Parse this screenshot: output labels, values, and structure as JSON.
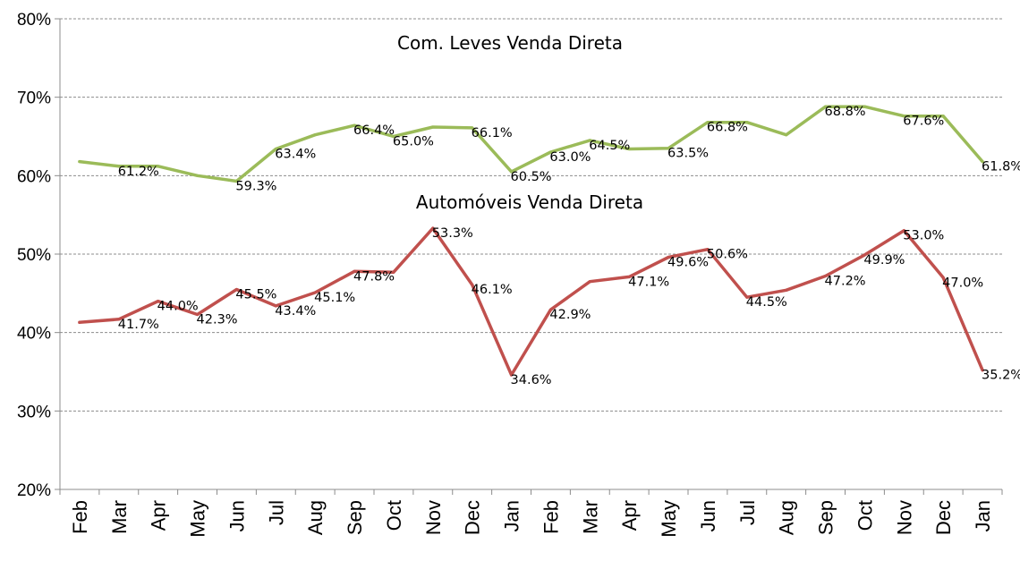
{
  "chart_data": {
    "type": "line",
    "title": "",
    "xlabel": "",
    "ylabel": "",
    "categories": [
      "Feb",
      "Mar",
      "Apr",
      "May",
      "Jun",
      "Jul",
      "Aug",
      "Sep",
      "Oct",
      "Nov",
      "Dec",
      "Jan",
      "Feb",
      "Mar",
      "Apr",
      "May",
      "Jun",
      "Jul",
      "Aug",
      "Sep",
      "Oct",
      "Nov",
      "Dec",
      "Jan"
    ],
    "ylim": [
      20,
      80
    ],
    "yticks": [
      20,
      30,
      40,
      50,
      60,
      70,
      80
    ],
    "ytick_labels": [
      "20%",
      "30%",
      "40%",
      "50%",
      "60%",
      "70%",
      "80%"
    ],
    "grid": true,
    "legend": "none",
    "series": [
      {
        "name": "Com. Leves Venda Direta",
        "color": "#9bbb59",
        "values": [
          61.8,
          61.2,
          61.2,
          60.0,
          59.3,
          63.4,
          65.2,
          66.4,
          65.0,
          66.2,
          66.1,
          60.5,
          63.0,
          64.5,
          63.4,
          63.5,
          66.8,
          66.8,
          65.2,
          68.8,
          68.8,
          67.6,
          67.6,
          61.8
        ],
        "labels": [
          "",
          "61.2%",
          "",
          "",
          "59.3%",
          "63.4%",
          "",
          "66.4%",
          "65.0%",
          "",
          "66.1%",
          "60.5%",
          "63.0%",
          "64.5%",
          "",
          "63.5%",
          "66.8%",
          "",
          "",
          "68.8%",
          "",
          "67.6%",
          "",
          "61.8%"
        ]
      },
      {
        "name": "Automóveis Venda Direta",
        "color": "#c0504d",
        "values": [
          41.3,
          41.7,
          44.0,
          42.3,
          45.5,
          43.4,
          45.1,
          47.8,
          47.7,
          53.3,
          46.1,
          34.6,
          42.9,
          46.5,
          47.1,
          49.6,
          50.6,
          44.5,
          45.4,
          47.2,
          49.9,
          53.0,
          47.0,
          35.2
        ],
        "labels": [
          "",
          "41.7%",
          "44.0%",
          "42.3%",
          "45.5%",
          "43.4%",
          "45.1%",
          "47.8%",
          "",
          "53.3%",
          "46.1%",
          "34.6%",
          "42.9%",
          "",
          "47.1%",
          "49.6%",
          "50.6%",
          "44.5%",
          "",
          "47.2%",
          "49.9%",
          "53.0%",
          "47.0%",
          "35.2%"
        ]
      }
    ]
  }
}
